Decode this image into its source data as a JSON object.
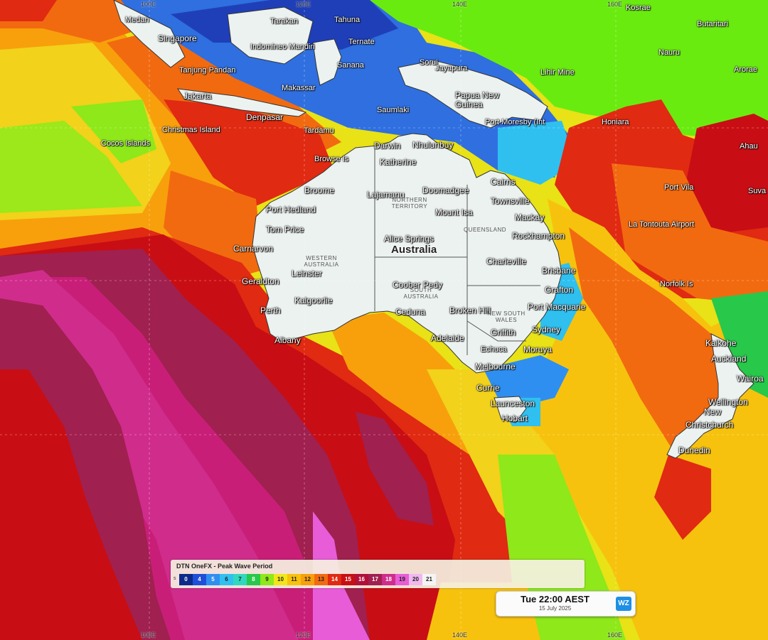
{
  "map": {
    "places": [
      {
        "id": "medan",
        "label": "Medan"
      },
      {
        "id": "singapore",
        "label": "Singapore"
      },
      {
        "id": "tanjung-pandan",
        "label": "Tanjung Pandan"
      },
      {
        "id": "jakarta",
        "label": "Jakarta"
      },
      {
        "id": "denpasar",
        "label": "Denpasar"
      },
      {
        "id": "christmas-island",
        "label": "Christmas Island"
      },
      {
        "id": "cocos-islands",
        "label": "Cocos Islands"
      },
      {
        "id": "tarakan",
        "label": "Tarakan"
      },
      {
        "id": "tahuna",
        "label": "Tahuna"
      },
      {
        "id": "indomineo-mandiri",
        "label": "Indomineo Mandiri"
      },
      {
        "id": "ternate",
        "label": "Ternate"
      },
      {
        "id": "sanana",
        "label": "Sanana"
      },
      {
        "id": "makassar",
        "label": "Makassar"
      },
      {
        "id": "saumlaki",
        "label": "Saumlaki"
      },
      {
        "id": "tardamu",
        "label": "Tardamu"
      },
      {
        "id": "sorui",
        "label": "Sorui"
      },
      {
        "id": "jayapura",
        "label": "Jayapura"
      },
      {
        "id": "papua-new-guinea",
        "label": "Papua New Guinea"
      },
      {
        "id": "port-moresby",
        "label": "Port Moresby (Int"
      },
      {
        "id": "lihir-mine",
        "label": "Lihir Mine"
      },
      {
        "id": "honiara",
        "label": "Honiara"
      },
      {
        "id": "nauru",
        "label": "Nauru"
      },
      {
        "id": "butaritari",
        "label": "Butaritari"
      },
      {
        "id": "arorae",
        "label": "Arorae"
      },
      {
        "id": "kosrae",
        "label": "Kosrae"
      },
      {
        "id": "ahau",
        "label": "Ahau"
      },
      {
        "id": "suva",
        "label": "Suva"
      },
      {
        "id": "port-vila",
        "label": "Port Vila"
      },
      {
        "id": "la-tontouta",
        "label": "La Tontouta Airport"
      },
      {
        "id": "norfolk-is",
        "label": "Norfolk Is"
      },
      {
        "id": "browse-is",
        "label": "Browse Is"
      },
      {
        "id": "darwin",
        "label": "Darwin"
      },
      {
        "id": "nhulunbuy",
        "label": "Nhulunbuy"
      },
      {
        "id": "katherine",
        "label": "Katherine"
      },
      {
        "id": "broome",
        "label": "Broome"
      },
      {
        "id": "lajamanu",
        "label": "Lajamanu"
      },
      {
        "id": "doomadgee",
        "label": "Doomadgee"
      },
      {
        "id": "cairns",
        "label": "Cairns"
      },
      {
        "id": "townsville",
        "label": "Townsville"
      },
      {
        "id": "mackay",
        "label": "Mackay"
      },
      {
        "id": "mount-isa",
        "label": "Mount Isa"
      },
      {
        "id": "port-hedland",
        "label": "Port Hedland"
      },
      {
        "id": "tom-price",
        "label": "Tom Price"
      },
      {
        "id": "rockhampton",
        "label": "Rockhampton"
      },
      {
        "id": "carnarvon",
        "label": "Carnarvon"
      },
      {
        "id": "alice-springs",
        "label": "Alice Springs"
      },
      {
        "id": "australia",
        "label": "Australia"
      },
      {
        "id": "charleville",
        "label": "Charleville"
      },
      {
        "id": "brisbane",
        "label": "Brisbane"
      },
      {
        "id": "leinster",
        "label": "Leinster"
      },
      {
        "id": "geraldton",
        "label": "Geraldton"
      },
      {
        "id": "coober-pedy",
        "label": "Coober Pedy"
      },
      {
        "id": "grafton",
        "label": "Grafton"
      },
      {
        "id": "kalgoorlie",
        "label": "Kalgoorlie"
      },
      {
        "id": "perth",
        "label": "Perth"
      },
      {
        "id": "ceduna",
        "label": "Ceduna"
      },
      {
        "id": "broken-hill",
        "label": "Broken Hill"
      },
      {
        "id": "port-macquarie",
        "label": "Port Macquarie"
      },
      {
        "id": "griffith",
        "label": "Griffith"
      },
      {
        "id": "sydney",
        "label": "Sydney"
      },
      {
        "id": "adelaide",
        "label": "Adelaide"
      },
      {
        "id": "albany",
        "label": "Albany"
      },
      {
        "id": "echuca",
        "label": "Echuca"
      },
      {
        "id": "moruya",
        "label": "Moruya"
      },
      {
        "id": "melbourne",
        "label": "Melbourne"
      },
      {
        "id": "currie",
        "label": "Currie"
      },
      {
        "id": "launceston",
        "label": "Launceston"
      },
      {
        "id": "hobart",
        "label": "Hobart"
      },
      {
        "id": "kaikohe",
        "label": "Kaikohe"
      },
      {
        "id": "auckland",
        "label": "Auckland"
      },
      {
        "id": "wairoa",
        "label": "Wairoa"
      },
      {
        "id": "wellington",
        "label": "Wellington"
      },
      {
        "id": "new",
        "label": "New"
      },
      {
        "id": "christchurch",
        "label": "Christchurch"
      },
      {
        "id": "dunedin",
        "label": "Dunedin"
      }
    ],
    "regions": {
      "northern_territory": "NORTHERN TERRITORY",
      "queensland": "QUEENSLAND",
      "western_australia": "WESTERN AUSTRALIA",
      "south_australia": "SOUTH AUSTRALIA",
      "new_south_wales": "NEW SOUTH WALES"
    },
    "lon_labels_top": [
      "100E",
      "120E",
      "140E",
      "160E"
    ],
    "lon_labels_bottom": [
      "100E",
      "120E",
      "140E",
      "160E"
    ]
  },
  "legend": {
    "title": "DTN OneFX - Peak Wave Period",
    "unit": "s",
    "bins": [
      {
        "label": "0",
        "color": "#0d2a8a"
      },
      {
        "label": "4",
        "color": "#1f4fd8"
      },
      {
        "label": "5",
        "color": "#2f8ff0"
      },
      {
        "label": "6",
        "color": "#2fc0f0"
      },
      {
        "label": "7",
        "color": "#30d8c0"
      },
      {
        "label": "8",
        "color": "#28c84a"
      },
      {
        "label": "9",
        "color": "#8ee81a"
      },
      {
        "label": "10",
        "color": "#f2e61a"
      },
      {
        "label": "11",
        "color": "#f7c20e"
      },
      {
        "label": "12",
        "color": "#f7a00c"
      },
      {
        "label": "13",
        "color": "#f26a10"
      },
      {
        "label": "14",
        "color": "#e02a12"
      },
      {
        "label": "15",
        "color": "#c80e14"
      },
      {
        "label": "16",
        "color": "#b0103a"
      },
      {
        "label": "17",
        "color": "#a02050"
      },
      {
        "label": "18",
        "color": "#d02c8c"
      },
      {
        "label": "19",
        "color": "#e85cd8"
      },
      {
        "label": "20",
        "color": "#f0b8ee"
      },
      {
        "label": "21",
        "color": "#f4f4f4"
      }
    ]
  },
  "timestamp": {
    "time": "Tue 22:00 AEST",
    "date": "15 July 2025",
    "logo": "WZ"
  }
}
